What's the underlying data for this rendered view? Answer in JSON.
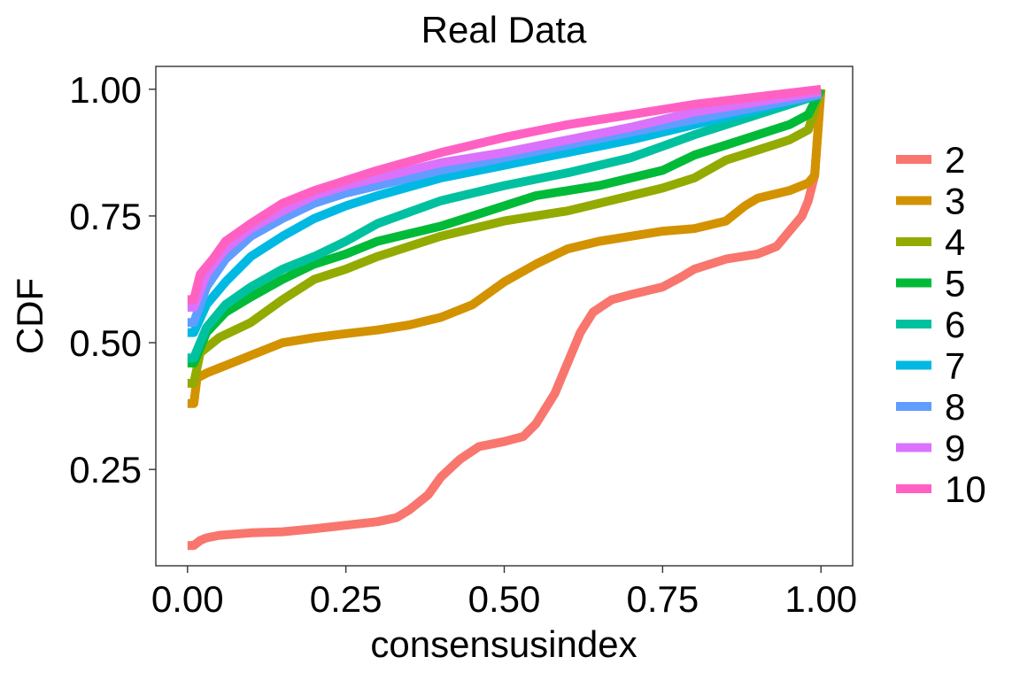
{
  "chart_data": {
    "type": "line",
    "title": "Real Data",
    "xlabel": "consensusindex",
    "ylabel": "CDF",
    "xlim": [
      -0.05,
      1.05
    ],
    "ylim": [
      0.06,
      1.045
    ],
    "xticks": [
      0.0,
      0.25,
      0.5,
      0.75,
      1.0
    ],
    "xtick_labels": [
      "0.00",
      "0.25",
      "0.50",
      "0.75",
      "1.00"
    ],
    "yticks": [
      0.25,
      0.5,
      0.75,
      1.0
    ],
    "ytick_labels": [
      "0.25",
      "0.50",
      "0.75",
      "1.00"
    ],
    "grid": false,
    "legend_position": "right",
    "series": [
      {
        "name": "2",
        "color": "#F8766D",
        "points": [
          [
            0,
            0.1
          ],
          [
            0.01,
            0.1
          ],
          [
            0.02,
            0.11
          ],
          [
            0.03,
            0.115
          ],
          [
            0.05,
            0.12
          ],
          [
            0.1,
            0.125
          ],
          [
            0.15,
            0.127
          ],
          [
            0.2,
            0.133
          ],
          [
            0.25,
            0.14
          ],
          [
            0.3,
            0.147
          ],
          [
            0.33,
            0.155
          ],
          [
            0.35,
            0.17
          ],
          [
            0.38,
            0.2
          ],
          [
            0.4,
            0.235
          ],
          [
            0.43,
            0.27
          ],
          [
            0.46,
            0.295
          ],
          [
            0.5,
            0.305
          ],
          [
            0.53,
            0.315
          ],
          [
            0.55,
            0.34
          ],
          [
            0.58,
            0.4
          ],
          [
            0.6,
            0.46
          ],
          [
            0.62,
            0.52
          ],
          [
            0.64,
            0.56
          ],
          [
            0.67,
            0.585
          ],
          [
            0.7,
            0.595
          ],
          [
            0.75,
            0.61
          ],
          [
            0.78,
            0.63
          ],
          [
            0.8,
            0.645
          ],
          [
            0.85,
            0.665
          ],
          [
            0.9,
            0.675
          ],
          [
            0.93,
            0.69
          ],
          [
            0.95,
            0.72
          ],
          [
            0.97,
            0.75
          ],
          [
            0.98,
            0.78
          ],
          [
            0.99,
            0.83
          ],
          [
            1.0,
            1.0
          ]
        ]
      },
      {
        "name": "3",
        "color": "#D39200",
        "points": [
          [
            0,
            0.38
          ],
          [
            0.01,
            0.38
          ],
          [
            0.015,
            0.43
          ],
          [
            0.03,
            0.44
          ],
          [
            0.05,
            0.45
          ],
          [
            0.1,
            0.475
          ],
          [
            0.15,
            0.5
          ],
          [
            0.2,
            0.51
          ],
          [
            0.25,
            0.518
          ],
          [
            0.3,
            0.525
          ],
          [
            0.35,
            0.535
          ],
          [
            0.4,
            0.55
          ],
          [
            0.45,
            0.575
          ],
          [
            0.5,
            0.62
          ],
          [
            0.55,
            0.655
          ],
          [
            0.6,
            0.685
          ],
          [
            0.65,
            0.7
          ],
          [
            0.7,
            0.71
          ],
          [
            0.75,
            0.72
          ],
          [
            0.8,
            0.725
          ],
          [
            0.85,
            0.74
          ],
          [
            0.88,
            0.77
          ],
          [
            0.9,
            0.785
          ],
          [
            0.95,
            0.8
          ],
          [
            0.98,
            0.815
          ],
          [
            0.99,
            0.83
          ],
          [
            1.0,
            1.0
          ]
        ]
      },
      {
        "name": "4",
        "color": "#93AA00",
        "points": [
          [
            0,
            0.42
          ],
          [
            0.01,
            0.42
          ],
          [
            0.02,
            0.48
          ],
          [
            0.05,
            0.51
          ],
          [
            0.1,
            0.54
          ],
          [
            0.15,
            0.585
          ],
          [
            0.2,
            0.625
          ],
          [
            0.25,
            0.645
          ],
          [
            0.3,
            0.67
          ],
          [
            0.4,
            0.71
          ],
          [
            0.5,
            0.74
          ],
          [
            0.6,
            0.76
          ],
          [
            0.7,
            0.79
          ],
          [
            0.75,
            0.805
          ],
          [
            0.8,
            0.825
          ],
          [
            0.85,
            0.86
          ],
          [
            0.9,
            0.88
          ],
          [
            0.95,
            0.9
          ],
          [
            0.98,
            0.92
          ],
          [
            1.0,
            1.0
          ]
        ]
      },
      {
        "name": "5",
        "color": "#00BA38",
        "points": [
          [
            0,
            0.46
          ],
          [
            0.01,
            0.46
          ],
          [
            0.03,
            0.52
          ],
          [
            0.06,
            0.56
          ],
          [
            0.1,
            0.59
          ],
          [
            0.15,
            0.625
          ],
          [
            0.2,
            0.655
          ],
          [
            0.25,
            0.675
          ],
          [
            0.3,
            0.7
          ],
          [
            0.4,
            0.73
          ],
          [
            0.5,
            0.77
          ],
          [
            0.55,
            0.79
          ],
          [
            0.6,
            0.8
          ],
          [
            0.65,
            0.81
          ],
          [
            0.7,
            0.825
          ],
          [
            0.75,
            0.84
          ],
          [
            0.8,
            0.87
          ],
          [
            0.85,
            0.89
          ],
          [
            0.9,
            0.91
          ],
          [
            0.95,
            0.93
          ],
          [
            0.98,
            0.95
          ],
          [
            1.0,
            1.0
          ]
        ]
      },
      {
        "name": "6",
        "color": "#00C19F",
        "points": [
          [
            0,
            0.47
          ],
          [
            0.01,
            0.47
          ],
          [
            0.03,
            0.53
          ],
          [
            0.06,
            0.575
          ],
          [
            0.1,
            0.61
          ],
          [
            0.15,
            0.645
          ],
          [
            0.2,
            0.67
          ],
          [
            0.25,
            0.7
          ],
          [
            0.3,
            0.735
          ],
          [
            0.4,
            0.78
          ],
          [
            0.5,
            0.81
          ],
          [
            0.6,
            0.835
          ],
          [
            0.7,
            0.865
          ],
          [
            0.8,
            0.91
          ],
          [
            0.9,
            0.95
          ],
          [
            0.95,
            0.97
          ],
          [
            1.0,
            0.99
          ]
        ]
      },
      {
        "name": "7",
        "color": "#00B9E3",
        "points": [
          [
            0,
            0.52
          ],
          [
            0.01,
            0.52
          ],
          [
            0.03,
            0.575
          ],
          [
            0.06,
            0.62
          ],
          [
            0.1,
            0.67
          ],
          [
            0.15,
            0.71
          ],
          [
            0.2,
            0.745
          ],
          [
            0.25,
            0.77
          ],
          [
            0.3,
            0.79
          ],
          [
            0.4,
            0.825
          ],
          [
            0.5,
            0.85
          ],
          [
            0.6,
            0.875
          ],
          [
            0.7,
            0.9
          ],
          [
            0.8,
            0.93
          ],
          [
            0.9,
            0.96
          ],
          [
            1.0,
            0.99
          ]
        ]
      },
      {
        "name": "8",
        "color": "#619CFF",
        "points": [
          [
            0,
            0.54
          ],
          [
            0.01,
            0.54
          ],
          [
            0.03,
            0.61
          ],
          [
            0.06,
            0.665
          ],
          [
            0.1,
            0.71
          ],
          [
            0.15,
            0.745
          ],
          [
            0.2,
            0.775
          ],
          [
            0.25,
            0.795
          ],
          [
            0.3,
            0.81
          ],
          [
            0.4,
            0.84
          ],
          [
            0.5,
            0.865
          ],
          [
            0.6,
            0.89
          ],
          [
            0.7,
            0.915
          ],
          [
            0.8,
            0.94
          ],
          [
            0.9,
            0.965
          ],
          [
            1.0,
            0.99
          ]
        ]
      },
      {
        "name": "9",
        "color": "#DB72FB",
        "points": [
          [
            0,
            0.57
          ],
          [
            0.01,
            0.57
          ],
          [
            0.03,
            0.635
          ],
          [
            0.06,
            0.685
          ],
          [
            0.1,
            0.725
          ],
          [
            0.15,
            0.76
          ],
          [
            0.2,
            0.79
          ],
          [
            0.25,
            0.81
          ],
          [
            0.3,
            0.825
          ],
          [
            0.4,
            0.855
          ],
          [
            0.5,
            0.875
          ],
          [
            0.6,
            0.9
          ],
          [
            0.7,
            0.925
          ],
          [
            0.8,
            0.955
          ],
          [
            0.9,
            0.975
          ],
          [
            1.0,
            0.995
          ]
        ]
      },
      {
        "name": "10",
        "color": "#FF61C3",
        "points": [
          [
            0,
            0.585
          ],
          [
            0.01,
            0.585
          ],
          [
            0.02,
            0.635
          ],
          [
            0.04,
            0.665
          ],
          [
            0.06,
            0.7
          ],
          [
            0.1,
            0.735
          ],
          [
            0.15,
            0.775
          ],
          [
            0.2,
            0.8
          ],
          [
            0.25,
            0.82
          ],
          [
            0.3,
            0.84
          ],
          [
            0.4,
            0.875
          ],
          [
            0.5,
            0.905
          ],
          [
            0.6,
            0.93
          ],
          [
            0.7,
            0.95
          ],
          [
            0.8,
            0.97
          ],
          [
            0.9,
            0.985
          ],
          [
            1.0,
            1.0
          ]
        ]
      }
    ]
  }
}
